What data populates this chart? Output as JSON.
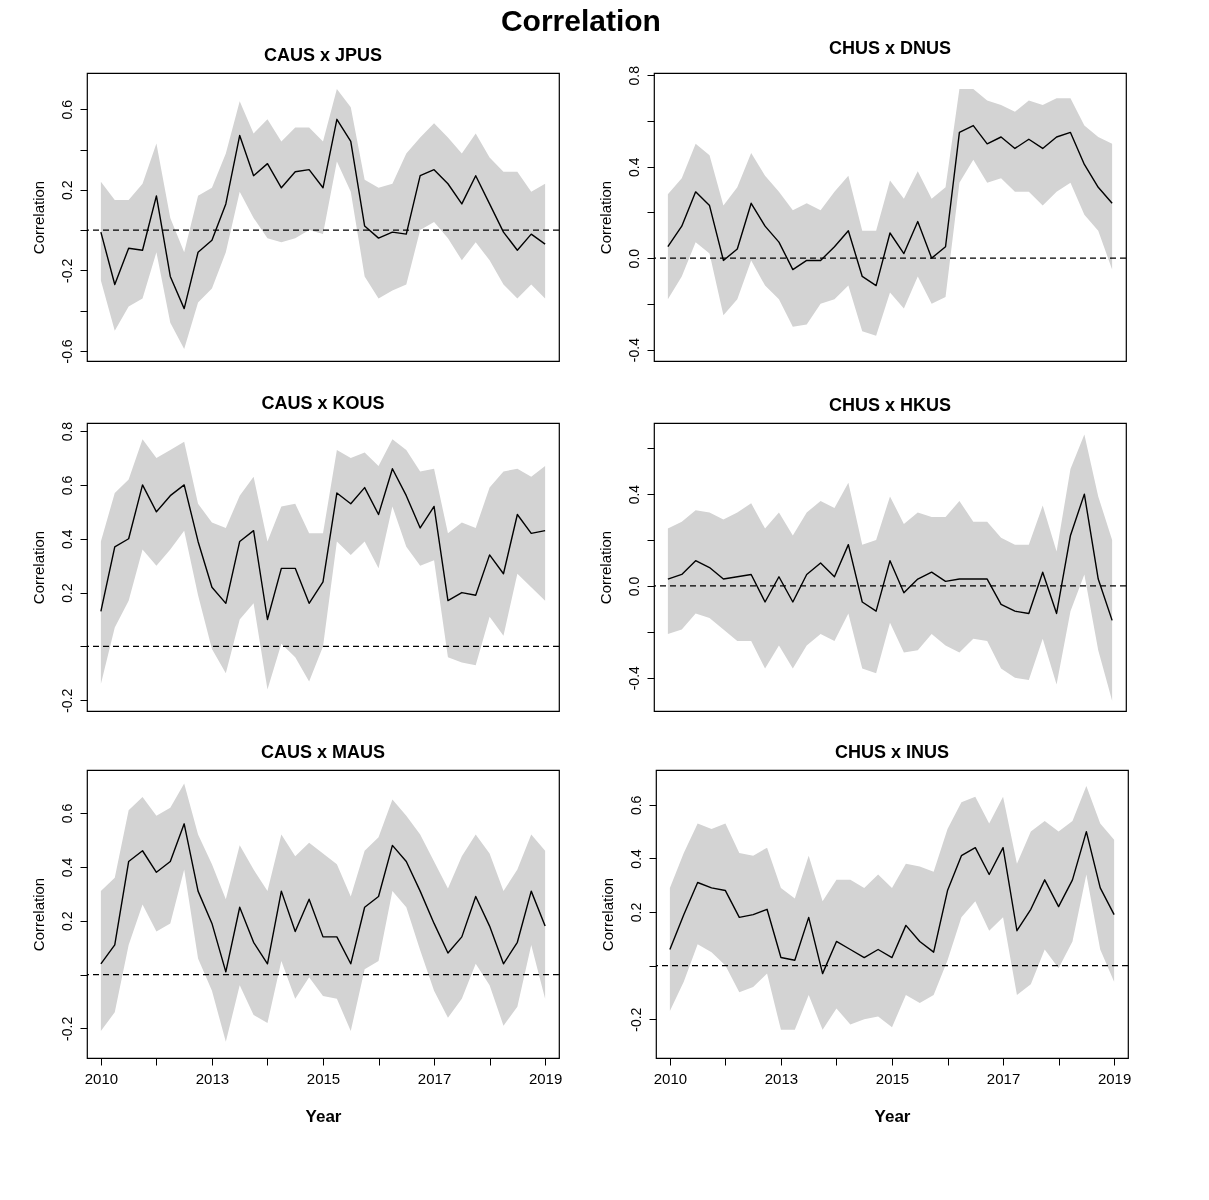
{
  "chart_data": [
    {
      "type": "line",
      "title": "CAUS x JPUS",
      "ylabel": "Correlation",
      "annotations": [
        "Correlation"
      ],
      "tick_labels": "y",
      "line_style": "solid",
      "marker": "none",
      "categories": [
        null,
        null,
        null,
        null,
        null,
        null,
        null,
        null,
        null,
        null,
        null,
        null,
        null,
        null,
        null,
        null,
        null,
        null,
        null,
        null,
        null,
        null,
        null,
        null,
        null,
        null,
        null,
        null,
        null,
        null,
        null,
        null,
        null
      ],
      "ylim": [
        -0.65,
        0.78
      ],
      "yticks": [
        -0.6,
        {
          "value": -0.4,
          "label": null
        },
        -0.2,
        {
          "value": 0,
          "label": null
        },
        0.2,
        {
          "value": 0.4,
          "label": null
        },
        0.6
      ],
      "ref_lines": [
        {
          "axis": "y",
          "value": 0,
          "color": "#000000",
          "line_style": "dashed"
        }
      ],
      "series": [
        {
          "color": "#000000",
          "values": [
            -0.01,
            -0.27,
            -0.09,
            -0.1,
            0.17,
            -0.23,
            -0.39,
            -0.11,
            -0.05,
            0.13,
            0.47,
            0.27,
            0.33,
            0.21,
            0.29,
            0.3,
            0.21,
            0.55,
            0.44,
            0.02,
            -0.04,
            -0.01,
            -0.02,
            0.27,
            0.3,
            0.23,
            0.13,
            0.27,
            0.13,
            -0.01,
            -0.1,
            -0.02,
            -0.07
          ],
          "lower": [
            -0.25,
            -0.5,
            -0.38,
            -0.34,
            -0.11,
            -0.46,
            -0.59,
            -0.36,
            -0.29,
            -0.11,
            0.19,
            0.06,
            -0.04,
            -0.06,
            -0.04,
            0.0,
            -0.02,
            0.34,
            0.19,
            -0.23,
            -0.34,
            -0.3,
            -0.27,
            0.0,
            0.04,
            -0.04,
            -0.15,
            -0.06,
            -0.15,
            -0.27,
            -0.34,
            -0.27,
            -0.34
          ],
          "upper": [
            0.24,
            0.15,
            0.15,
            0.23,
            0.43,
            0.06,
            -0.11,
            0.17,
            0.21,
            0.38,
            0.64,
            0.48,
            0.55,
            0.44,
            0.51,
            0.51,
            0.44,
            0.7,
            0.61,
            0.25,
            0.21,
            0.23,
            0.38,
            0.46,
            0.53,
            0.46,
            0.38,
            0.48,
            0.36,
            0.29,
            0.29,
            0.19,
            0.23
          ]
        }
      ]
    },
    {
      "type": "line",
      "title": "CHUS x DNUS",
      "ylabel": "Correlation",
      "tick_labels": "y",
      "line_style": "solid",
      "marker": "none",
      "categories": [
        null,
        null,
        null,
        null,
        null,
        null,
        null,
        null,
        null,
        null,
        null,
        null,
        null,
        null,
        null,
        null,
        null,
        null,
        null,
        null,
        null,
        null,
        null,
        null,
        null,
        null,
        null,
        null,
        null,
        null,
        null,
        null,
        null
      ],
      "ylim": [
        -0.45,
        0.81
      ],
      "yticks": [
        -0.4,
        {
          "value": -0.2,
          "label": null
        },
        {
          "value": 0,
          "label": "0.0"
        },
        {
          "value": 0.2,
          "label": null
        },
        0.4,
        {
          "value": 0.6,
          "label": null
        },
        0.8
      ],
      "ref_lines": [
        {
          "axis": "y",
          "value": 0,
          "color": "#000000",
          "line_style": "dashed"
        }
      ],
      "series": [
        {
          "color": "#000000",
          "values": [
            0.05,
            0.14,
            0.29,
            0.23,
            -0.01,
            0.04,
            0.24,
            0.14,
            0.07,
            -0.05,
            -0.01,
            -0.01,
            0.05,
            0.12,
            -0.08,
            -0.12,
            0.11,
            0.02,
            0.16,
            0.0,
            0.05,
            0.55,
            0.58,
            0.5,
            0.53,
            0.48,
            0.52,
            0.48,
            0.53,
            0.55,
            0.41,
            0.31,
            0.24
          ],
          "lower": [
            -0.18,
            -0.08,
            0.07,
            0.02,
            -0.25,
            -0.18,
            -0.01,
            -0.12,
            -0.18,
            -0.3,
            -0.29,
            -0.2,
            -0.18,
            -0.12,
            -0.32,
            -0.34,
            -0.15,
            -0.22,
            -0.08,
            -0.2,
            -0.17,
            0.33,
            0.43,
            0.33,
            0.35,
            0.29,
            0.29,
            0.23,
            0.29,
            0.33,
            0.19,
            0.12,
            -0.05
          ],
          "upper": [
            0.28,
            0.35,
            0.5,
            0.45,
            0.23,
            0.31,
            0.46,
            0.36,
            0.29,
            0.21,
            0.24,
            0.21,
            0.29,
            0.36,
            0.12,
            0.12,
            0.34,
            0.26,
            0.38,
            0.26,
            0.31,
            0.74,
            0.74,
            0.69,
            0.67,
            0.64,
            0.69,
            0.67,
            0.7,
            0.7,
            0.58,
            0.53,
            0.5
          ]
        }
      ]
    },
    {
      "type": "line",
      "title": "CAUS x KOUS",
      "ylabel": "Correlation",
      "tick_labels": "y",
      "line_style": "solid",
      "marker": "none",
      "categories": [
        null,
        null,
        null,
        null,
        null,
        null,
        null,
        null,
        null,
        null,
        null,
        null,
        null,
        null,
        null,
        null,
        null,
        null,
        null,
        null,
        null,
        null,
        null,
        null,
        null,
        null,
        null,
        null,
        null,
        null,
        null,
        null,
        null
      ],
      "ylim": [
        -0.24,
        0.83
      ],
      "yticks": [
        -0.2,
        {
          "value": 0,
          "label": null
        },
        0.2,
        0.4,
        0.6,
        0.8
      ],
      "ref_lines": [
        {
          "axis": "y",
          "value": 0,
          "color": "#000000",
          "line_style": "dashed"
        }
      ],
      "series": [
        {
          "color": "#000000",
          "values": [
            0.13,
            0.37,
            0.4,
            0.6,
            0.5,
            0.56,
            0.6,
            0.39,
            0.22,
            0.16,
            0.39,
            0.43,
            0.1,
            0.29,
            0.29,
            0.16,
            0.24,
            0.57,
            0.53,
            0.59,
            0.49,
            0.66,
            0.56,
            0.44,
            0.52,
            0.17,
            0.2,
            0.19,
            0.34,
            0.27,
            0.49,
            0.42,
            0.43
          ],
          "lower": [
            -0.14,
            0.07,
            0.17,
            0.36,
            0.3,
            0.36,
            0.43,
            0.19,
            -0.01,
            -0.1,
            0.1,
            0.16,
            -0.16,
            0.01,
            -0.04,
            -0.13,
            0.0,
            0.39,
            0.34,
            0.39,
            0.29,
            0.52,
            0.37,
            0.3,
            0.32,
            -0.04,
            -0.06,
            -0.07,
            0.11,
            0.04,
            0.27,
            0.22,
            0.17
          ],
          "upper": [
            0.39,
            0.57,
            0.62,
            0.77,
            0.7,
            0.73,
            0.76,
            0.53,
            0.46,
            0.44,
            0.56,
            0.63,
            0.39,
            0.52,
            0.53,
            0.42,
            0.42,
            0.73,
            0.7,
            0.72,
            0.67,
            0.77,
            0.73,
            0.65,
            0.66,
            0.42,
            0.46,
            0.44,
            0.59,
            0.65,
            0.66,
            0.63,
            0.67
          ]
        }
      ]
    },
    {
      "type": "line",
      "title": "CHUS x HKUS",
      "ylabel": "Correlation",
      "tick_labels": "y",
      "line_style": "solid",
      "marker": "none",
      "categories": [
        null,
        null,
        null,
        null,
        null,
        null,
        null,
        null,
        null,
        null,
        null,
        null,
        null,
        null,
        null,
        null,
        null,
        null,
        null,
        null,
        null,
        null,
        null,
        null,
        null,
        null,
        null,
        null,
        null,
        null,
        null,
        null,
        null
      ],
      "ylim": [
        -0.545,
        0.71
      ],
      "yticks": [
        -0.4,
        {
          "value": -0.2,
          "label": null
        },
        {
          "value": 0,
          "label": "0.0"
        },
        {
          "value": 0.2,
          "label": null
        },
        0.4,
        {
          "value": 0.6,
          "label": null
        }
      ],
      "ref_lines": [
        {
          "axis": "y",
          "value": 0,
          "color": "#000000",
          "line_style": "dashed"
        }
      ],
      "series": [
        {
          "color": "#000000",
          "values": [
            0.03,
            0.05,
            0.11,
            0.08,
            0.03,
            0.04,
            0.05,
            -0.07,
            0.04,
            -0.07,
            0.05,
            0.1,
            0.04,
            0.18,
            -0.07,
            -0.11,
            0.11,
            -0.03,
            0.03,
            0.06,
            0.02,
            0.03,
            0.03,
            0.03,
            -0.08,
            -0.11,
            -0.12,
            0.06,
            -0.12,
            0.22,
            0.4,
            0.03,
            -0.15
          ],
          "lower": [
            -0.21,
            -0.19,
            -0.12,
            -0.14,
            -0.19,
            -0.24,
            -0.24,
            -0.36,
            -0.26,
            -0.36,
            -0.26,
            -0.21,
            -0.24,
            -0.12,
            -0.36,
            -0.38,
            -0.16,
            -0.29,
            -0.28,
            -0.21,
            -0.26,
            -0.29,
            -0.23,
            -0.24,
            -0.36,
            -0.4,
            -0.41,
            -0.23,
            -0.43,
            -0.11,
            0.05,
            -0.28,
            -0.5
          ],
          "upper": [
            0.25,
            0.28,
            0.33,
            0.32,
            0.29,
            0.32,
            0.36,
            0.25,
            0.32,
            0.22,
            0.32,
            0.37,
            0.34,
            0.45,
            0.18,
            0.2,
            0.39,
            0.27,
            0.32,
            0.3,
            0.3,
            0.37,
            0.28,
            0.28,
            0.21,
            0.18,
            0.18,
            0.35,
            0.15,
            0.51,
            0.66,
            0.39,
            0.2
          ]
        }
      ]
    },
    {
      "type": "line",
      "title": "CAUS x MAUS",
      "xlabel": "Year",
      "ylabel": "Correlation",
      "line_style": "solid",
      "marker": "none",
      "categories": [
        "2010",
        null,
        null,
        null,
        null,
        null,
        null,
        null,
        "2013",
        null,
        null,
        null,
        null,
        null,
        null,
        null,
        "2015",
        null,
        null,
        null,
        null,
        null,
        null,
        null,
        "2017",
        null,
        null,
        null,
        null,
        null,
        null,
        null,
        "2019"
      ],
      "ylim": [
        -0.31,
        0.76
      ],
      "yticks": [
        -0.2,
        {
          "value": 0,
          "label": null
        },
        0.2,
        0.4,
        0.6
      ],
      "ref_lines": [
        {
          "axis": "y",
          "value": 0,
          "color": "#000000",
          "line_style": "dashed"
        }
      ],
      "series": [
        {
          "color": "#000000",
          "values": [
            0.04,
            0.11,
            0.42,
            0.46,
            0.38,
            0.42,
            0.56,
            0.31,
            0.19,
            0.01,
            0.25,
            0.12,
            0.04,
            0.31,
            0.16,
            0.28,
            0.14,
            0.14,
            0.04,
            0.25,
            0.29,
            0.48,
            0.42,
            0.31,
            0.19,
            0.08,
            0.14,
            0.29,
            0.18,
            0.04,
            0.12,
            0.31,
            0.18
          ],
          "lower": [
            -0.21,
            -0.14,
            0.11,
            0.26,
            0.16,
            0.19,
            0.39,
            0.06,
            -0.06,
            -0.25,
            -0.04,
            -0.15,
            -0.18,
            0.05,
            -0.09,
            -0.01,
            -0.08,
            -0.09,
            -0.21,
            0.02,
            0.05,
            0.31,
            0.25,
            0.09,
            -0.06,
            -0.16,
            -0.09,
            0.04,
            -0.04,
            -0.19,
            -0.12,
            0.11,
            -0.09
          ],
          "upper": [
            0.31,
            0.36,
            0.61,
            0.66,
            0.59,
            0.62,
            0.71,
            0.52,
            0.41,
            0.28,
            0.48,
            0.39,
            0.31,
            0.52,
            0.44,
            0.49,
            0.45,
            0.41,
            0.29,
            0.46,
            0.51,
            0.65,
            0.59,
            0.52,
            0.42,
            0.32,
            0.44,
            0.52,
            0.45,
            0.31,
            0.39,
            0.52,
            0.46
          ]
        }
      ]
    },
    {
      "type": "line",
      "title": "CHUS x INUS",
      "xlabel": "Year",
      "ylabel": "Correlation",
      "line_style": "solid",
      "marker": "none",
      "categories": [
        "2010",
        null,
        null,
        null,
        null,
        null,
        null,
        null,
        "2013",
        null,
        null,
        null,
        null,
        null,
        null,
        null,
        "2015",
        null,
        null,
        null,
        null,
        null,
        null,
        null,
        "2017",
        null,
        null,
        null,
        null,
        null,
        null,
        null,
        "2019"
      ],
      "ylim": [
        -0.345,
        0.73
      ],
      "yticks": [
        -0.2,
        {
          "value": 0,
          "label": null
        },
        0.2,
        0.4,
        0.6
      ],
      "ref_lines": [
        {
          "axis": "y",
          "value": 0,
          "color": "#000000",
          "line_style": "dashed"
        }
      ],
      "series": [
        {
          "color": "#000000",
          "values": [
            0.06,
            0.19,
            0.31,
            0.29,
            0.28,
            0.18,
            0.19,
            0.21,
            0.03,
            0.02,
            0.18,
            -0.03,
            0.09,
            0.06,
            0.03,
            0.06,
            0.03,
            0.15,
            0.09,
            0.05,
            0.28,
            0.41,
            0.44,
            0.34,
            0.44,
            0.13,
            0.21,
            0.32,
            0.22,
            0.32,
            0.5,
            0.29,
            0.19
          ],
          "lower": [
            -0.17,
            -0.06,
            0.08,
            0.05,
            0.0,
            -0.1,
            -0.08,
            -0.03,
            -0.24,
            -0.24,
            -0.11,
            -0.24,
            -0.16,
            -0.22,
            -0.2,
            -0.19,
            -0.23,
            -0.11,
            -0.14,
            -0.11,
            0.02,
            0.18,
            0.24,
            0.13,
            0.18,
            -0.11,
            -0.07,
            0.06,
            -0.01,
            0.09,
            0.34,
            0.06,
            -0.06
          ],
          "upper": [
            0.29,
            0.42,
            0.53,
            0.51,
            0.53,
            0.42,
            0.41,
            0.44,
            0.29,
            0.25,
            0.41,
            0.24,
            0.32,
            0.32,
            0.29,
            0.34,
            0.29,
            0.38,
            0.37,
            0.35,
            0.51,
            0.61,
            0.63,
            0.53,
            0.63,
            0.38,
            0.5,
            0.54,
            0.5,
            0.54,
            0.67,
            0.53,
            0.47
          ]
        }
      ]
    }
  ]
}
